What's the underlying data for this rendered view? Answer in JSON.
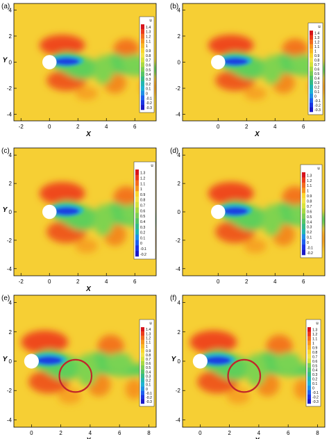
{
  "figure": {
    "panels": [
      {
        "label": "(a)",
        "xlabel": "X",
        "ylabel": "Y",
        "legend_title": "u",
        "x_ticks": [
          "-2",
          "0",
          "2",
          "4",
          "6"
        ],
        "y_ticks": [
          "4",
          "2",
          "0",
          "-2",
          "-4"
        ],
        "circle": false,
        "legend_labels": [
          "1.4",
          "1.3",
          "1.2",
          "1.1",
          "1",
          "0.9",
          "0.8",
          "0.7",
          "0.6",
          "0.5",
          "0.4",
          "0.3",
          "0.2",
          "0.1",
          "0",
          "-0.1",
          "-0.2",
          "-0.3"
        ]
      },
      {
        "label": "(b)",
        "xlabel": "X",
        "ylabel": "",
        "legend_title": "u",
        "x_ticks": [
          "0",
          "2",
          "4",
          "6"
        ],
        "y_ticks": [
          "4",
          "2",
          "0",
          "-2",
          "-4"
        ],
        "circle": false,
        "legend_labels": [
          "1.4",
          "1.3",
          "1.2",
          "1.1",
          "1",
          "0.9",
          "0.8",
          "0.7",
          "0.6",
          "0.5",
          "0.4",
          "0.3",
          "0.2",
          "0.1",
          "0",
          "-0.1",
          "-0.2",
          "-0.3"
        ]
      },
      {
        "label": "(c)",
        "xlabel": "X",
        "ylabel": "Y",
        "legend_title": "u",
        "x_ticks": [
          "-2",
          "0",
          "2",
          "4",
          "6"
        ],
        "y_ticks": [
          "4",
          "2",
          "0",
          "-2",
          "-4"
        ],
        "circle": false,
        "legend_labels": [
          "1.3",
          "1.2",
          "1.1",
          "1",
          "0.9",
          "0.8",
          "0.7",
          "0.6",
          "0.5",
          "0.4",
          "0.3",
          "0.2",
          "0.1",
          "0",
          "-0.1",
          "-0.2"
        ]
      },
      {
        "label": "(d)",
        "xlabel": "",
        "ylabel": "",
        "legend_title": "u",
        "x_ticks": [
          "0",
          "2",
          "4",
          "6"
        ],
        "y_ticks": [
          "4",
          "2",
          "0",
          "-2",
          "-4"
        ],
        "circle": false,
        "legend_labels": [
          "1.3",
          "1.2",
          "1.1",
          "1",
          "0.9",
          "0.8",
          "0.7",
          "0.6",
          "0.5",
          "0.4",
          "0.3",
          "0.2",
          "0.1",
          "0",
          "-0.1",
          "-0.2"
        ]
      },
      {
        "label": "(e)",
        "xlabel": "X",
        "ylabel": "Y",
        "legend_title": "u",
        "x_ticks": [
          "0",
          "2",
          "4",
          "6",
          "8"
        ],
        "y_ticks": [
          "4",
          "2",
          "0",
          "-2",
          "-4"
        ],
        "circle": true,
        "legend_labels": [
          "1.4",
          "1.3",
          "1.2",
          "1.1",
          "1",
          "0.9",
          "0.8",
          "0.7",
          "0.6",
          "0.5",
          "0.4",
          "0.3",
          "0.2",
          "0.1",
          "0",
          "-0.1",
          "-0.2",
          "-0.3"
        ]
      },
      {
        "label": "(f)",
        "xlabel": "X",
        "ylabel": "Y",
        "legend_title": "u",
        "x_ticks": [
          "0",
          "2",
          "4",
          "6",
          "8"
        ],
        "y_ticks": [
          "4",
          "2",
          "0",
          "-2",
          "-4"
        ],
        "circle": true,
        "legend_labels": [
          "1.3",
          "1.2",
          "1.1",
          "1",
          "0.9",
          "0.8",
          "0.7",
          "0.6",
          "0.5",
          "0.4",
          "0.3",
          "0.2",
          "0.1",
          "0",
          "-0.1",
          "-0.2",
          "-0.3"
        ]
      }
    ]
  },
  "chart_data": [
    {
      "type": "heatmap",
      "label": "(a)",
      "field": "u",
      "xlabel": "X",
      "ylabel": "Y",
      "xlim": [
        -2.5,
        7.5
      ],
      "ylim": [
        -4.5,
        4.5
      ],
      "cylinder_center": [
        0,
        0
      ],
      "circle": null,
      "colorbar": [
        1.4,
        1.3,
        1.2,
        1.1,
        1,
        0.9,
        0.8,
        0.7,
        0.6,
        0.5,
        0.4,
        0.3,
        0.2,
        0.1,
        0,
        -0.1,
        -0.2,
        -0.3
      ]
    },
    {
      "type": "heatmap",
      "label": "(b)",
      "field": "u",
      "xlabel": "X",
      "ylabel": "",
      "xlim": [
        -2.5,
        7.5
      ],
      "ylim": [
        -4.5,
        4.5
      ],
      "cylinder_center": [
        0,
        0
      ],
      "circle": null,
      "colorbar": [
        1.4,
        1.3,
        1.2,
        1.1,
        1,
        0.9,
        0.8,
        0.7,
        0.6,
        0.5,
        0.4,
        0.3,
        0.2,
        0.1,
        0,
        -0.1,
        -0.2,
        -0.3
      ]
    },
    {
      "type": "heatmap",
      "label": "(c)",
      "field": "u",
      "xlabel": "X",
      "ylabel": "Y",
      "xlim": [
        -2.5,
        7.5
      ],
      "ylim": [
        -4.5,
        4.5
      ],
      "cylinder_center": [
        0,
        0
      ],
      "circle": null,
      "colorbar": [
        1.3,
        1.2,
        1.1,
        1,
        0.9,
        0.8,
        0.7,
        0.6,
        0.5,
        0.4,
        0.3,
        0.2,
        0.1,
        0,
        -0.1,
        -0.2
      ]
    },
    {
      "type": "heatmap",
      "label": "(d)",
      "field": "u",
      "xlabel": "",
      "ylabel": "",
      "xlim": [
        -2.5,
        7.5
      ],
      "ylim": [
        -4.5,
        4.5
      ],
      "cylinder_center": [
        0,
        0
      ],
      "circle": null,
      "colorbar": [
        1.3,
        1.2,
        1.1,
        1,
        0.9,
        0.8,
        0.7,
        0.6,
        0.5,
        0.4,
        0.3,
        0.2,
        0.1,
        0,
        -0.1,
        -0.2
      ]
    },
    {
      "type": "heatmap",
      "label": "(e)",
      "field": "u",
      "xlabel": "X",
      "ylabel": "Y",
      "xlim": [
        -1.2,
        8.5
      ],
      "ylim": [
        -4.5,
        4.5
      ],
      "cylinder_center": [
        0,
        0
      ],
      "circle": {
        "center": [
          3,
          -1
        ],
        "radius": 1.1
      },
      "colorbar": [
        1.4,
        1.3,
        1.2,
        1.1,
        1,
        0.9,
        0.8,
        0.7,
        0.6,
        0.5,
        0.4,
        0.3,
        0.2,
        0.1,
        0,
        -0.1,
        -0.2,
        -0.3
      ]
    },
    {
      "type": "heatmap",
      "label": "(f)",
      "field": "u",
      "xlabel": "X",
      "ylabel": "Y",
      "xlim": [
        -1.2,
        8.5
      ],
      "ylim": [
        -4.5,
        4.5
      ],
      "cylinder_center": [
        0,
        0
      ],
      "circle": {
        "center": [
          3,
          -1
        ],
        "radius": 1.1
      },
      "colorbar": [
        1.3,
        1.2,
        1.1,
        1,
        0.9,
        0.8,
        0.7,
        0.6,
        0.5,
        0.4,
        0.3,
        0.2,
        0.1,
        0,
        -0.1,
        -0.2,
        -0.3
      ]
    }
  ]
}
